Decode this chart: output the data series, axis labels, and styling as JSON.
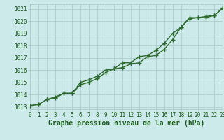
{
  "line1_x": [
    0,
    1,
    2,
    3,
    4,
    5,
    6,
    7,
    8,
    9,
    10,
    11,
    12,
    13,
    14,
    15,
    16,
    17,
    18,
    19,
    20,
    21,
    22,
    23
  ],
  "line1_y": [
    1013.1,
    1013.2,
    1013.6,
    1013.7,
    1014.1,
    1014.1,
    1014.8,
    1015.0,
    1015.3,
    1015.8,
    1016.1,
    1016.6,
    1016.6,
    1017.1,
    1017.2,
    1017.6,
    1018.2,
    1019.0,
    1019.5,
    1020.2,
    1020.3,
    1020.3,
    1020.5,
    1021.05
  ],
  "line2_x": [
    0,
    1,
    2,
    3,
    4,
    5,
    6,
    7,
    8,
    9,
    10,
    11,
    12,
    13,
    14,
    15,
    16,
    17,
    18,
    19,
    20,
    21,
    22,
    23
  ],
  "line2_y": [
    1013.1,
    1013.2,
    1013.6,
    1013.8,
    1014.1,
    1014.1,
    1015.0,
    1015.2,
    1015.5,
    1016.0,
    1016.1,
    1016.2,
    1016.5,
    1016.6,
    1017.1,
    1017.2,
    1017.7,
    1018.5,
    1019.5,
    1020.3,
    1020.3,
    1020.4,
    1020.5,
    1021.1
  ],
  "line_color": "#2d6a2d",
  "bg_color": "#cceaea",
  "grid_color": "#aac8c8",
  "ylim": [
    1012.8,
    1021.4
  ],
  "yticks": [
    1013,
    1014,
    1015,
    1016,
    1017,
    1018,
    1019,
    1020,
    1021
  ],
  "xlim": [
    0,
    23
  ],
  "xticks": [
    0,
    1,
    2,
    3,
    4,
    5,
    6,
    7,
    8,
    9,
    10,
    11,
    12,
    13,
    14,
    15,
    16,
    17,
    18,
    19,
    20,
    21,
    22,
    23
  ],
  "xlabel": "Graphe pression niveau de la mer (hPa)",
  "xlabel_color": "#1a5c1a",
  "tick_color": "#1a5c1a",
  "linewidth": 1.0,
  "markersize": 4,
  "markeredgewidth": 1.0,
  "tick_fontsize": 5.5,
  "label_fontsize": 7.0
}
